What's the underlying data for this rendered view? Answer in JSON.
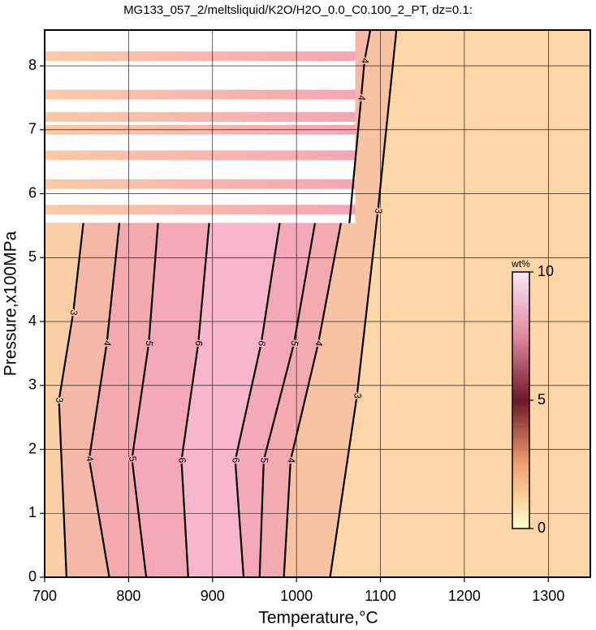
{
  "chart_data": {
    "type": "contour",
    "title": "MG133_057_2/meltsliquid/K2O/H2O_0.0_C0.100_2_PT, dz=0.1:",
    "x_label": "Temperature,°C",
    "y_label": "Pressure,x100MPa",
    "xlim": [
      700,
      1350
    ],
    "ylim": [
      0,
      8.56
    ],
    "xticks": [
      700,
      800,
      900,
      1000,
      1100,
      1200,
      1300
    ],
    "yticks": [
      0,
      1,
      2,
      3,
      4,
      5,
      6,
      7,
      8
    ],
    "grid": true,
    "background": "#fdd6a7",
    "contours": [
      {
        "level": 3,
        "fill": "#f8c3a3",
        "x": [
          1040,
          1072,
          1097,
          1119
        ],
        "y": [
          0,
          2.84,
          5.73,
          8.56
        ]
      },
      {
        "level": 4,
        "fill": "#f6b8a8",
        "x": [
          1063,
          1077,
          1081,
          1088
        ],
        "y": [
          5.54,
          7.5,
          8.08,
          8.56
        ]
      },
      {
        "level": 4,
        "fill": "#f4abb0",
        "x": [
          985,
          993,
          1026,
          1053
        ],
        "y": [
          0,
          1.83,
          3.66,
          5.54
        ]
      },
      {
        "level": 5,
        "fill": "#f5a8ba",
        "x": [
          956,
          961,
          997,
          1022
        ],
        "y": [
          0,
          1.83,
          3.66,
          5.54
        ]
      },
      {
        "level": 6,
        "fill": "#f8b6cd",
        "x": [
          937,
          927,
          958,
          980
        ],
        "y": [
          0,
          1.83,
          3.66,
          5.54
        ]
      },
      {
        "level": 6,
        "fill": "#f4a8b8",
        "x": [
          871,
          863,
          883,
          896
        ],
        "y": [
          0,
          1.83,
          3.66,
          5.54
        ]
      },
      {
        "level": 5,
        "fill": "#f3a9ae",
        "x": [
          821,
          804,
          824,
          835
        ],
        "y": [
          0,
          1.85,
          3.66,
          5.54
        ]
      },
      {
        "level": 4,
        "fill": "#f6b8a6",
        "x": [
          777,
          753,
          774,
          789
        ],
        "y": [
          0,
          1.85,
          3.66,
          5.54
        ]
      },
      {
        "level": 3,
        "fill": "#fbcfa5",
        "x": [
          726,
          717,
          734,
          746
        ],
        "y": [
          0,
          2.77,
          4.14,
          5.54
        ]
      }
    ],
    "masked": {
      "tmax": 1070,
      "pmin": 5.54
    },
    "stripes": {
      "p": [
        8.15,
        7.55,
        7.2,
        7.0,
        6.6,
        6.15,
        5.75
      ],
      "colors": [
        "#fbcaa6",
        "#f4a6b4"
      ]
    },
    "colorbar": {
      "label": "wt%",
      "lim": [
        0,
        10
      ],
      "ticks": [
        0,
        5,
        10
      ],
      "colors": [
        "#ffffc8",
        "#f0a070",
        "#701828",
        "#e08aa0",
        "#f8e8f8"
      ]
    }
  }
}
